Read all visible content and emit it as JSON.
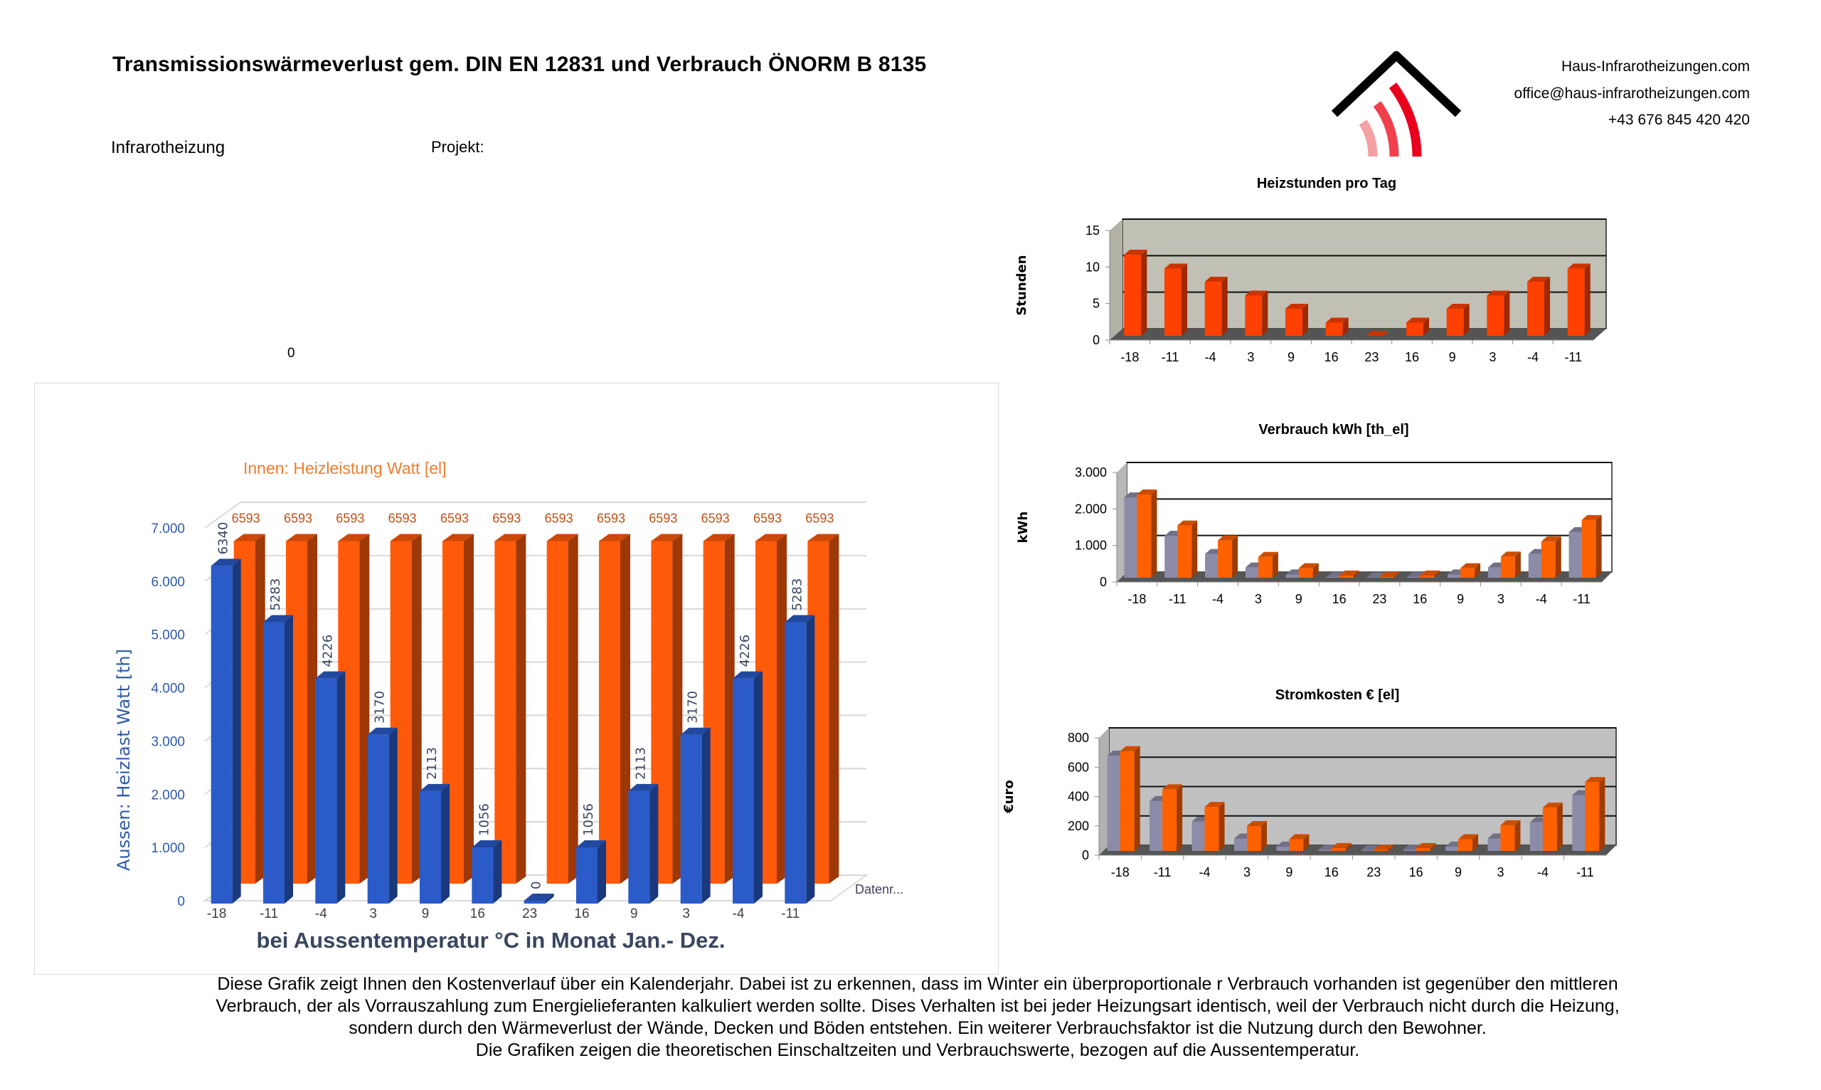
{
  "header": {
    "title": "Transmissionswärmeverlust gem. DIN EN 12831 und Verbrauch ÖNORM B 8135",
    "subtitle_left": "Infrarotheizung",
    "projekt_label": "Projekt:",
    "stray_value": "0"
  },
  "contact": {
    "website": "Haus-Infrarotheizungen.com",
    "email": "office@haus-infrarotheizungen.com",
    "phone": "+43 676 845 420 420"
  },
  "logo": {
    "icon": "house-heat-waves-icon",
    "roof_color": "#000000",
    "wave_colors": [
      "#f4a0a4",
      "#f0404c",
      "#e8001c"
    ]
  },
  "colors": {
    "blue": "#2a5bc8",
    "orange": "#ff5a0a",
    "gray_bar": "#8c8ca8",
    "panel_gray": "#c0c0b8",
    "floor": "#555555",
    "axis_blue": "#2e5aa8",
    "label_orange": "#c0501a"
  },
  "footer": {
    "lines": [
      "Diese Grafik zeigt Ihnen den Kostenverlauf über ein Kalenderjahr. Dabei ist zu erkennen, dass im Winter ein überproportionale r Verbrauch vorhanden ist gegenüber den mittleren",
      "Verbrauch, der als Vorrauszahlung zum Energielieferanten kalkuliert werden sollte. Dises Verhalten ist bei jeder Heizungsart  identisch, weil der Verbrauch nicht durch die Heizung,",
      "sondern durch den Wärmeverlust der Wände, Decken und Böden entstehen. Ein weiterer Verbrauchsfaktor ist die Nutzung durch den Bewohner.",
      "Die Grafiken zeigen die theoretischen Einschaltzeiten und Verbrauchswerte, bezogen auf die Aussentemperatur."
    ]
  },
  "chart_data": [
    {
      "id": "main",
      "type": "bar",
      "title": "Innen: Heizleistung   Watt [el]",
      "xlabel": "bei Aussentemperatur °C in Monat  Jan.- Dez.",
      "ylabel": "Aussen: Heizlast  Watt [th]",
      "categories": [
        "-18",
        "-11",
        "-4",
        "3",
        "9",
        "16",
        "23",
        "16",
        "9",
        "3",
        "-4",
        "-11"
      ],
      "ylim": [
        0,
        7000
      ],
      "yticks": [
        "0",
        "1.000",
        "2.000",
        "3.000",
        "4.000",
        "5.000",
        "6.000",
        "7.000"
      ],
      "grid": true,
      "depth_axis_label": "Datenr...",
      "series": [
        {
          "name": "Aussen: Heizlast Watt [th]",
          "color": "#2a5bc8",
          "values": [
            6340,
            5283,
            4226,
            3170,
            2113,
            1056,
            0,
            1056,
            2113,
            3170,
            4226,
            5283
          ],
          "labels": [
            "6340",
            "5283",
            "4226",
            "3170",
            "2113",
            "1056",
            "0",
            "1056",
            "2113",
            "3170",
            "4226",
            "5283"
          ]
        },
        {
          "name": "Innen: Heizleistung Watt [el]",
          "color": "#ff5a0a",
          "values": [
            6593,
            6593,
            6593,
            6593,
            6593,
            6593,
            6593,
            6593,
            6593,
            6593,
            6593,
            6593
          ],
          "labels": [
            "6593",
            "6593",
            "6593",
            "6593",
            "6593",
            "6593",
            "6593",
            "6593",
            "6593",
            "6593",
            "6593",
            "6593"
          ]
        }
      ]
    },
    {
      "id": "heizstunden",
      "type": "bar",
      "title": "Heizstunden pro Tag",
      "ylabel": "Stunden",
      "xlabel": "",
      "categories": [
        "-18",
        "-11",
        "-4",
        "3",
        "9",
        "16",
        "23",
        "16",
        "9",
        "3",
        "-4",
        "-11"
      ],
      "ylim": [
        0,
        15
      ],
      "yticks": [
        "0",
        "5",
        "10",
        "15"
      ],
      "grid": true,
      "background": "#c0c0b4",
      "series": [
        {
          "name": "Heizstunden",
          "color": "#ff4000",
          "values": [
            11.1,
            9.2,
            7.4,
            5.5,
            3.7,
            1.8,
            0,
            1.8,
            3.7,
            5.5,
            7.4,
            9.2
          ]
        }
      ]
    },
    {
      "id": "verbrauch",
      "type": "bar",
      "title": "Verbrauch  kWh [th_el]",
      "ylabel": "kWh",
      "xlabel": "",
      "categories": [
        "-18",
        "-11",
        "-4",
        "3",
        "9",
        "16",
        "23",
        "16",
        "9",
        "3",
        "-4",
        "-11"
      ],
      "ylim": [
        0,
        3000
      ],
      "yticks": [
        "0",
        "1.000",
        "2.000",
        "3.000"
      ],
      "grid": true,
      "background": "#ffffff",
      "series": [
        {
          "name": "th",
          "color": "#8c8ca8",
          "values": [
            2200,
            1150,
            650,
            280,
            90,
            20,
            10,
            20,
            90,
            280,
            650,
            1250
          ]
        },
        {
          "name": "el",
          "color": "#ff6000",
          "values": [
            2280,
            1430,
            1020,
            570,
            260,
            60,
            20,
            60,
            260,
            580,
            990,
            1580
          ]
        }
      ]
    },
    {
      "id": "stromkosten",
      "type": "bar",
      "title": "Stromkosten € [el]",
      "ylabel": "€uro",
      "xlabel": "",
      "categories": [
        "-18",
        "-11",
        "-4",
        "3",
        "9",
        "16",
        "23",
        "16",
        "9",
        "3",
        "-4",
        "-11"
      ],
      "ylim": [
        0,
        800
      ],
      "yticks": [
        "0",
        "200",
        "400",
        "600",
        "800"
      ],
      "grid": true,
      "background": "#c0c0c0",
      "series": [
        {
          "name": "th",
          "color": "#8c8ca8",
          "values": [
            650,
            340,
            200,
            85,
            30,
            8,
            5,
            8,
            30,
            85,
            195,
            380
          ]
        },
        {
          "name": "el",
          "color": "#ff6000",
          "values": [
            680,
            420,
            300,
            170,
            80,
            20,
            8,
            20,
            80,
            175,
            295,
            470
          ]
        }
      ]
    }
  ]
}
